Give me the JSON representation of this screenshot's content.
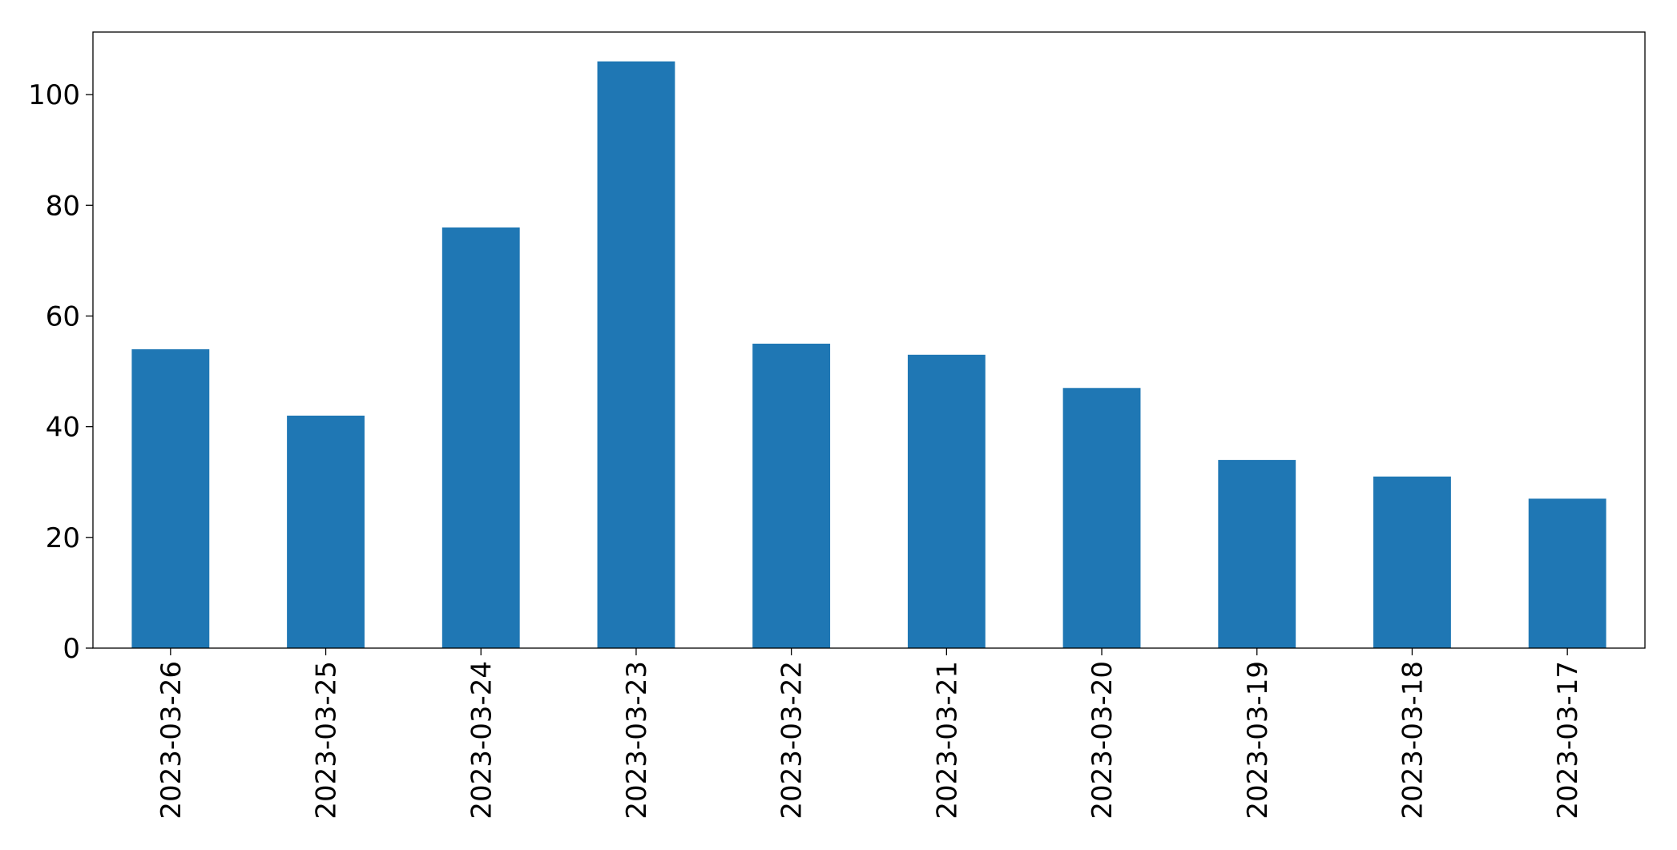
{
  "chart_data": {
    "type": "bar",
    "categories": [
      "2023-03-26",
      "2023-03-25",
      "2023-03-24",
      "2023-03-23",
      "2023-03-22",
      "2023-03-21",
      "2023-03-20",
      "2023-03-19",
      "2023-03-18",
      "2023-03-17"
    ],
    "values": [
      54,
      42,
      76,
      106,
      55,
      53,
      47,
      34,
      31,
      27
    ],
    "color": "#1f77b4",
    "ylim": [
      0,
      111.3
    ],
    "yticks": [
      0,
      20,
      40,
      60,
      80,
      100
    ],
    "grid": false
  }
}
